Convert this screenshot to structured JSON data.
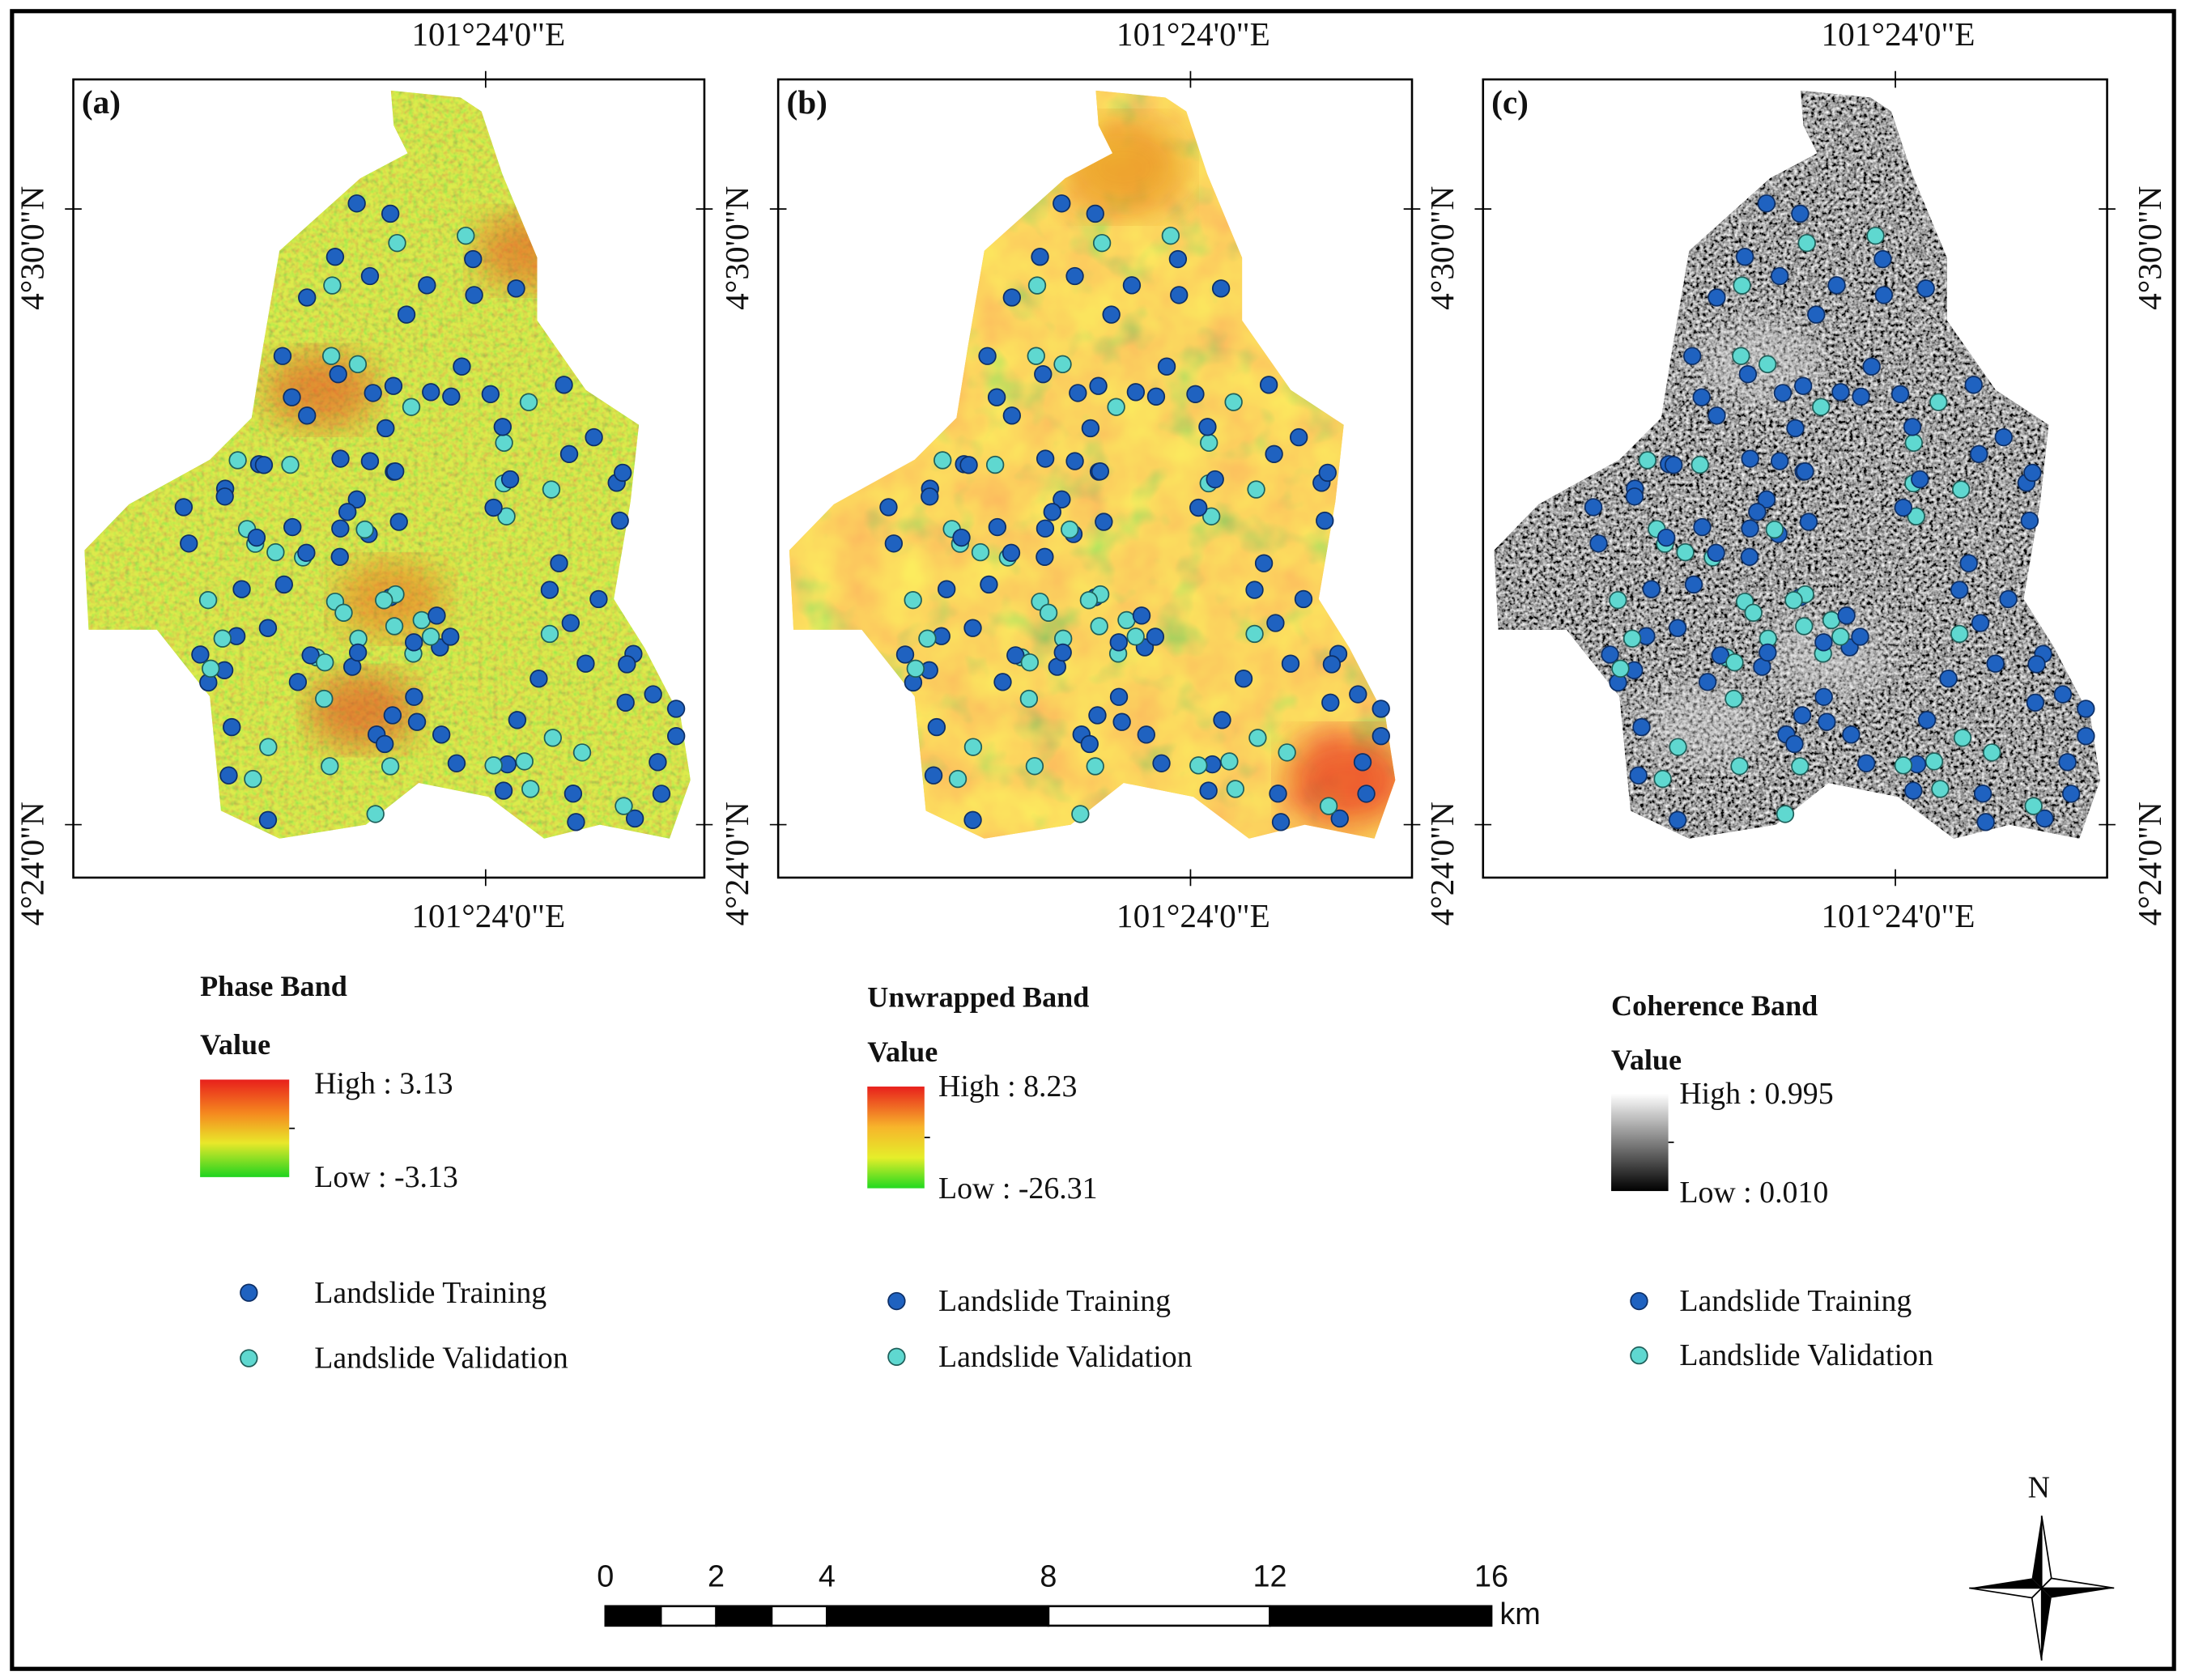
{
  "panels": [
    {
      "label": "(a)",
      "top_lon": "101°24'0\"E",
      "bottom_lon": "101°24'0\"E",
      "lat_labels": [
        "4°30'0\"N",
        "4°24'0\"N"
      ],
      "legend": {
        "title": "Phase Band",
        "subtitle": "Value",
        "high": "High : 3.13",
        "low": "Low : -3.13",
        "items": [
          "Landslide Training",
          "Landslide Validation"
        ]
      }
    },
    {
      "label": "(b)",
      "top_lon": "101°24'0\"E",
      "bottom_lon": "101°24'0\"E",
      "lat_labels": [
        "4°30'0\"N",
        "4°24'0\"N"
      ],
      "legend": {
        "title": "Unwrapped Band",
        "subtitle": "Value",
        "high": "High : 8.23",
        "low": "Low : -26.31",
        "items": [
          "Landslide Training",
          "Landslide Validation"
        ]
      }
    },
    {
      "label": "(c)",
      "top_lon": "101°24'0\"E",
      "bottom_lon": "101°24'0\"E",
      "lat_labels": [
        "4°30'0\"N",
        "4°24'0\"N"
      ],
      "right_lat_labels": [
        "4°30'0\"N",
        "4°24'0\"N"
      ],
      "legend": {
        "title": "Coherence Band",
        "subtitle": "Value",
        "high": "High : 0.995",
        "low": "Low : 0.010",
        "items": [
          "Landslide Training",
          "Landslide Validation"
        ]
      }
    }
  ],
  "scale_bar": {
    "ticks": [
      0,
      2,
      4,
      8,
      12,
      16
    ],
    "unit": "km"
  },
  "north": "N"
}
